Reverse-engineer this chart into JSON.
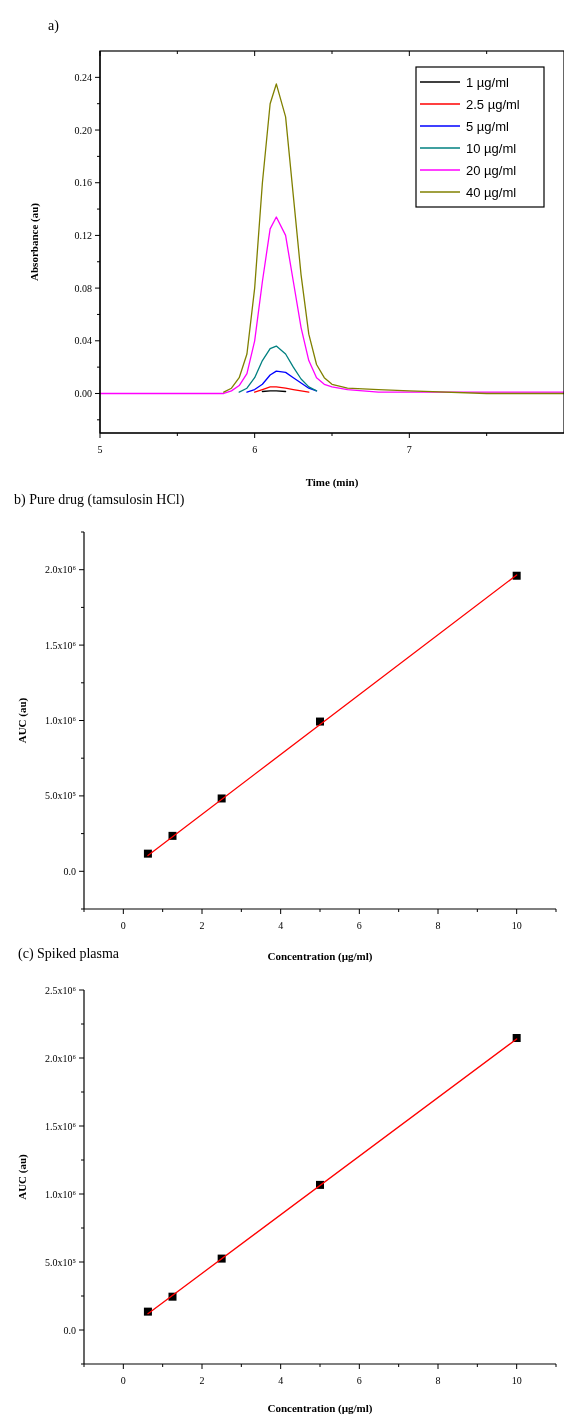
{
  "chart_data": [
    {
      "type": "line",
      "title": "a)",
      "xlabel": "Time (min)",
      "ylabel": "Absorbance (au)",
      "legend": "top right",
      "x": [
        5,
        5.05,
        5.1,
        5.5,
        5.75,
        5.8,
        5.85,
        5.9,
        5.95,
        6.0,
        6.05,
        6.1,
        6.14,
        6.2,
        6.25,
        6.3,
        6.35,
        6.4,
        6.45,
        6.5,
        6.6,
        6.8,
        7.0,
        7.5,
        8
      ],
      "series": [
        {
          "name": "1 µg/ml",
          "color": "#000000",
          "x": [
            6.05,
            6.1,
            6.14,
            6.2
          ],
          "values": [
            0.0015,
            0.002,
            0.002,
            0.0015
          ]
        },
        {
          "name": "2.5 µg/ml",
          "color": "#ff0000",
          "x": [
            6.0,
            6.05,
            6.1,
            6.14,
            6.2,
            6.25,
            6.3,
            6.35
          ],
          "values": [
            0.001,
            0.003,
            0.005,
            0.005,
            0.004,
            0.003,
            0.002,
            0.001
          ]
        },
        {
          "name": "5 µg/ml",
          "color": "#0000ff",
          "x": [
            5.95,
            6.0,
            6.05,
            6.1,
            6.14,
            6.2,
            6.25,
            6.3,
            6.35,
            6.4
          ],
          "values": [
            0.001,
            0.003,
            0.007,
            0.014,
            0.017,
            0.016,
            0.012,
            0.008,
            0.004,
            0.002
          ]
        },
        {
          "name": "10 µg/ml",
          "color": "#008080",
          "x": [
            5.9,
            5.95,
            6.0,
            6.05,
            6.1,
            6.14,
            6.2,
            6.25,
            6.3,
            6.35,
            6.4
          ],
          "values": [
            0.001,
            0.004,
            0.012,
            0.025,
            0.034,
            0.036,
            0.03,
            0.02,
            0.011,
            0.005,
            0.002
          ]
        },
        {
          "name": "20 µg/ml",
          "color": "#ff00ff",
          "values": [
            0,
            0,
            0,
            0,
            0,
            0,
            0.002,
            0.006,
            0.015,
            0.04,
            0.085,
            0.125,
            0.134,
            0.12,
            0.085,
            0.05,
            0.025,
            0.012,
            0.007,
            0.005,
            0.003,
            0.001,
            0.001,
            0.001,
            0.001
          ]
        },
        {
          "name": "40 µg/ml",
          "color": "#808000",
          "values": [
            null,
            null,
            null,
            null,
            null,
            0.001,
            0.004,
            0.012,
            0.03,
            0.08,
            0.16,
            0.22,
            0.235,
            0.21,
            0.15,
            0.09,
            0.045,
            0.022,
            0.012,
            0.007,
            0.004,
            0.003,
            0.002,
            0,
            0
          ]
        }
      ],
      "xlim": [
        5,
        8
      ],
      "xticks": [
        5,
        {
          "value": 5.5,
          "label": null
        },
        6,
        {
          "value": 6.5,
          "label": null
        },
        7,
        {
          "value": 7.5,
          "label": null
        }
      ],
      "ylim": [
        -0.03,
        0.26
      ],
      "yticks": [
        {
          "value": -0.02,
          "label": null
        },
        "0.00",
        {
          "value": 0.02,
          "label": null
        },
        {
          "value": 0.04,
          "label": "0.04"
        },
        {
          "value": 0.06,
          "label": null
        },
        {
          "value": 0.08,
          "label": "0.08"
        },
        {
          "value": 0.1,
          "label": null
        },
        {
          "value": 0.12,
          "label": "0.12"
        },
        {
          "value": 0.14,
          "label": null
        },
        {
          "value": 0.16,
          "label": "0.16"
        },
        {
          "value": 0.18,
          "label": null
        },
        {
          "value": 0.2,
          "label": "0.20"
        },
        {
          "value": 0.22,
          "label": null
        },
        {
          "value": 0.24,
          "label": "0.24"
        }
      ]
    },
    {
      "type": "scatter",
      "title": "b) Pure drug (tamsulosin HCl)",
      "xlabel": "Concentration (µg/ml)",
      "ylabel": "AUC (au)",
      "series": [
        {
          "color": "#000000",
          "marker": "square",
          "x": [
            0.625,
            1.25,
            2.5,
            5,
            10
          ],
          "values": [
            117000,
            235000,
            483000,
            993000,
            1960000
          ]
        },
        {
          "type": "line",
          "color": "#ff0000",
          "x": [
            0.625,
            10
          ],
          "values": [
            105000,
            1965000
          ]
        }
      ],
      "xlim": [
        -1,
        11
      ],
      "xticks": [
        {
          "value": -1,
          "label": null
        },
        0,
        {
          "value": 1,
          "label": null
        },
        2,
        {
          "value": 3,
          "label": null
        },
        4,
        {
          "value": 5,
          "label": null
        },
        6,
        {
          "value": 7,
          "label": null
        },
        8,
        {
          "value": 9,
          "label": null
        },
        10,
        {
          "value": 11,
          "label": null
        }
      ],
      "ylim": [
        -250000,
        2250000
      ],
      "yticks": [
        {
          "value": -250000,
          "label": null
        },
        {
          "value": 0,
          "label": "0.0"
        },
        {
          "value": 250000,
          "label": null
        },
        {
          "value": 500000,
          "label": "5.0x10⁵"
        },
        {
          "value": 750000,
          "label": null
        },
        {
          "value": 1000000,
          "label": "1.0x10⁶"
        },
        {
          "value": 1250000,
          "label": null
        },
        {
          "value": 1500000,
          "label": "1.5x10⁶"
        },
        {
          "value": 1750000,
          "label": null
        },
        {
          "value": 2000000,
          "label": "2.0x10⁶"
        },
        {
          "value": 2250000,
          "label": null
        }
      ]
    },
    {
      "type": "scatter",
      "title": "(c) Spiked plasma",
      "xlabel": "Concentration (µg/ml)",
      "ylabel": "AUC (au)",
      "series": [
        {
          "color": "#000000",
          "marker": "square",
          "x": [
            0.625,
            1.25,
            2.5,
            5,
            10
          ],
          "values": [
            135000,
            245000,
            525000,
            1067000,
            2147000
          ]
        },
        {
          "type": "line",
          "color": "#ff0000",
          "x": [
            0.625,
            10
          ],
          "values": [
            120000,
            2140000
          ]
        }
      ],
      "xlim": [
        -1,
        11
      ],
      "xticks": [
        {
          "value": -1,
          "label": null
        },
        0,
        {
          "value": 1,
          "label": null
        },
        2,
        {
          "value": 3,
          "label": null
        },
        4,
        {
          "value": 5,
          "label": null
        },
        6,
        {
          "value": 7,
          "label": null
        },
        8,
        {
          "value": 9,
          "label": null
        },
        10,
        {
          "value": 11,
          "label": null
        }
      ],
      "ylim": [
        -250000,
        2500000
      ],
      "yticks": [
        {
          "value": -250000,
          "label": null
        },
        {
          "value": 0,
          "label": "0.0"
        },
        {
          "value": 250000,
          "label": null
        },
        {
          "value": 500000,
          "label": "5.0x10⁵"
        },
        {
          "value": 750000,
          "label": null
        },
        {
          "value": 1000000,
          "label": "1.0x10⁶"
        },
        {
          "value": 1250000,
          "label": null
        },
        {
          "value": 1500000,
          "label": "1.5x10⁶"
        },
        {
          "value": 1750000,
          "label": null
        },
        {
          "value": 2000000,
          "label": "2.0x10⁶"
        },
        {
          "value": 2250000,
          "label": null
        },
        {
          "value": 2500000,
          "label": "2.5x10⁶"
        }
      ]
    }
  ]
}
